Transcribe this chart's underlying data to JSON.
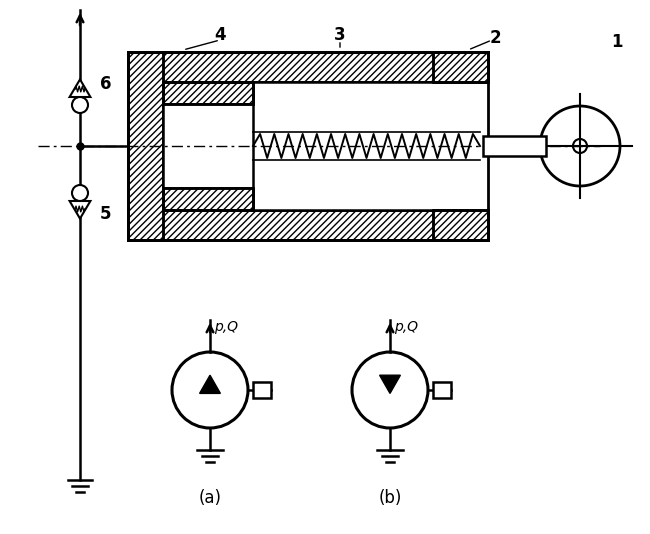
{
  "bg_color": "#ffffff",
  "line_color": "#000000",
  "label_6": "6",
  "label_5": "5",
  "label_4": "4",
  "label_3": "3",
  "label_2": "2",
  "label_1": "1",
  "label_a": "(a)",
  "label_b": "(b)",
  "label_pQ": "p,Q",
  "figsize": [
    6.5,
    5.34
  ],
  "dpi": 100
}
